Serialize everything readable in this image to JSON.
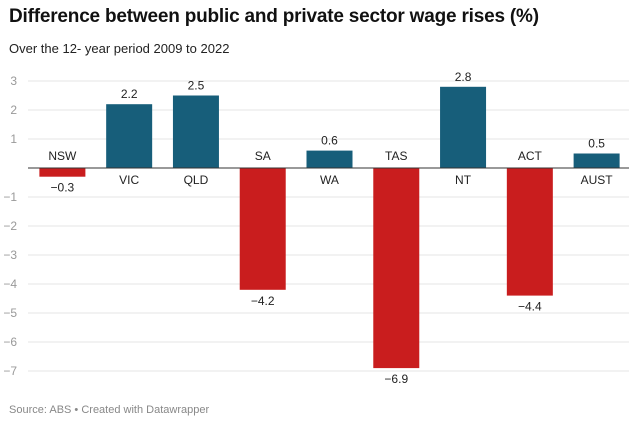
{
  "header": {
    "title": "Difference between public and private sector wage rises (%)",
    "subtitle": "Over the 12- year period 2009 to 2022"
  },
  "footer": {
    "text": "Source: ABS • Created with Datawrapper"
  },
  "colors": {
    "positive": "#175e7a",
    "negative": "#c91d1e",
    "grid": "#e6e6e6",
    "axis": "#333333"
  },
  "chart_data": {
    "type": "bar",
    "title": "Difference between public and private sector wage rises (%)",
    "subtitle": "Over the 12- year period 2009 to 2022",
    "xlabel": "",
    "ylabel": "",
    "categories": [
      "NSW",
      "VIC",
      "QLD",
      "SA",
      "WA",
      "TAS",
      "NT",
      "ACT",
      "AUST"
    ],
    "values": [
      -0.3,
      2.2,
      2.5,
      -4.2,
      0.6,
      -6.9,
      2.8,
      -4.4,
      0.5
    ],
    "value_labels": [
      "−0.3",
      "2.2",
      "2.5",
      "−4.2",
      "0.6",
      "−6.9",
      "2.8",
      "−4.4",
      "0.5"
    ],
    "ylim": [
      -7,
      3
    ],
    "yticks": [
      3,
      2,
      1,
      -1,
      -2,
      -3,
      -4,
      -5,
      -6,
      -7
    ],
    "ytick_labels": [
      "3",
      "2",
      "1",
      "−1",
      "−2",
      "−3",
      "−4",
      "−5",
      "−6",
      "−7"
    ],
    "grid": true,
    "legend": "none"
  }
}
